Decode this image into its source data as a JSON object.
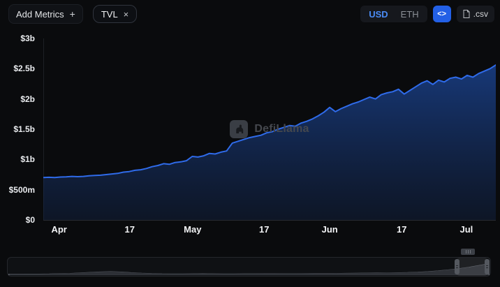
{
  "toolbar": {
    "add_metrics_label": "Add Metrics",
    "plus_icon": "+",
    "metric_pill": {
      "label": "TVL",
      "close_icon": "×"
    },
    "currency_toggle": {
      "options": [
        "USD",
        "ETH"
      ],
      "selected": "USD"
    },
    "embed_icon": "<>",
    "csv_label": ".csv"
  },
  "watermark": {
    "text": "DefiLlama"
  },
  "theme": {
    "accent_blue": "#2360e6",
    "line": "#2f6bea",
    "area_top": "#2057c0",
    "area_bottom": "#122345",
    "mini_fill": "#2d3036",
    "mini_stroke": "#595d65"
  },
  "chart_data": {
    "type": "area",
    "title": "TVL",
    "unit": "USD billions",
    "ylim": [
      0,
      3
    ],
    "y_ticks": [
      "$0",
      "$500m",
      "$1b",
      "$1.5b",
      "$2b",
      "$2.5b",
      "$3b"
    ],
    "y_tick_values": [
      0,
      0.5,
      1,
      1.5,
      2,
      2.5,
      3
    ],
    "x_ticks": [
      {
        "label": "Apr",
        "x": 0.035
      },
      {
        "label": "17",
        "x": 0.191
      },
      {
        "label": "May",
        "x": 0.33
      },
      {
        "label": "17",
        "x": 0.488
      },
      {
        "label": "Jun",
        "x": 0.633
      },
      {
        "label": "17",
        "x": 0.792
      },
      {
        "label": "Jul",
        "x": 0.935
      }
    ],
    "values": [
      0.7,
      0.705,
      0.7,
      0.71,
      0.712,
      0.72,
      0.715,
      0.72,
      0.73,
      0.735,
      0.74,
      0.75,
      0.76,
      0.77,
      0.79,
      0.8,
      0.82,
      0.83,
      0.85,
      0.88,
      0.9,
      0.93,
      0.92,
      0.95,
      0.96,
      0.98,
      1.05,
      1.04,
      1.06,
      1.1,
      1.09,
      1.12,
      1.14,
      1.27,
      1.3,
      1.33,
      1.36,
      1.38,
      1.4,
      1.44,
      1.46,
      1.5,
      1.53,
      1.56,
      1.55,
      1.6,
      1.63,
      1.67,
      1.72,
      1.78,
      1.86,
      1.79,
      1.84,
      1.88,
      1.92,
      1.95,
      1.99,
      2.03,
      2.0,
      2.07,
      2.1,
      2.12,
      2.16,
      2.08,
      2.14,
      2.2,
      2.26,
      2.3,
      2.24,
      2.31,
      2.28,
      2.34,
      2.36,
      2.33,
      2.39,
      2.36,
      2.42,
      2.46,
      2.5,
      2.56
    ],
    "legend": [],
    "grid": false
  },
  "brush": {
    "mini_values": [
      0.04,
      0.04,
      0.05,
      0.05,
      0.06,
      0.08,
      0.1,
      0.14,
      0.18,
      0.22,
      0.24,
      0.21,
      0.16,
      0.12,
      0.09,
      0.07,
      0.06,
      0.06,
      0.07,
      0.08,
      0.07,
      0.06,
      0.06,
      0.07,
      0.07,
      0.08,
      0.08,
      0.07,
      0.07,
      0.08,
      0.09,
      0.09,
      0.1,
      0.11,
      0.12,
      0.13,
      0.14,
      0.13,
      0.15,
      0.17,
      0.2,
      0.24,
      0.3,
      0.38,
      0.47,
      0.58,
      0.72,
      0.86
    ]
  }
}
